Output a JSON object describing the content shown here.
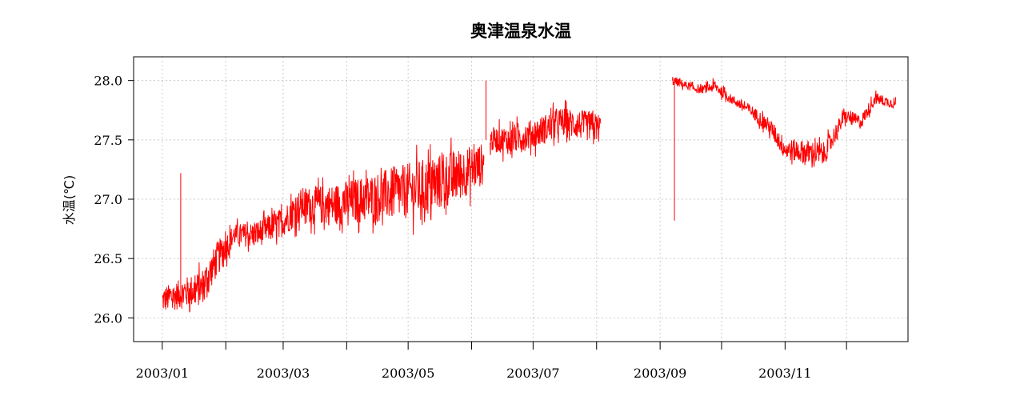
{
  "chart_data": {
    "type": "line",
    "title": "奥津温泉水温",
    "xlabel": "",
    "ylabel": "水温(℃)",
    "color": "#ff0000",
    "grid": true,
    "legend": "none",
    "x_range": [
      "2002-12-18",
      "2003-12-31"
    ],
    "ylim": [
      25.8,
      28.2
    ],
    "y_ticks": [
      26.0,
      26.5,
      27.0,
      27.5,
      28.0
    ],
    "y_tick_labels": [
      "26.0",
      "26.5",
      "27.0",
      "27.5",
      "28.0"
    ],
    "x_ticks": [
      "2003-01-01",
      "2003-02-01",
      "2003-03-01",
      "2003-04-01",
      "2003-05-01",
      "2003-06-01",
      "2003-07-01",
      "2003-08-01",
      "2003-09-01",
      "2003-10-01",
      "2003-11-01",
      "2003-12-01"
    ],
    "x_tick_labels": [
      "2003/01",
      "",
      "2003/03",
      "",
      "2003/05",
      "",
      "2003/07",
      "",
      "2003/09",
      "",
      "2003/11",
      ""
    ],
    "series": [
      {
        "values": [
          [
            "2003-01-01",
            26.15,
            0.22
          ],
          [
            "2003-01-10",
            26.2,
            0.25
          ],
          [
            "2003-01-20",
            26.25,
            0.3
          ],
          [
            "2003-01-28",
            26.5,
            0.3
          ],
          [
            "2003-02-05",
            26.7,
            0.18
          ],
          [
            "2003-02-15",
            26.7,
            0.22
          ],
          [
            "2003-02-28",
            26.8,
            0.25
          ],
          [
            "2003-03-10",
            26.95,
            0.3
          ],
          [
            "2003-03-25",
            26.95,
            0.35
          ],
          [
            "2003-04-10",
            27.0,
            0.4
          ],
          [
            "2003-04-25",
            27.05,
            0.45
          ],
          [
            "2003-05-10",
            27.1,
            0.5
          ],
          [
            "2003-05-25",
            27.2,
            0.45
          ],
          [
            "2003-06-07",
            27.3,
            0.35
          ]
        ]
      },
      {
        "values": [
          [
            "2003-06-10",
            27.5,
            0.2
          ],
          [
            "2003-06-20",
            27.5,
            0.25
          ],
          [
            "2003-07-01",
            27.55,
            0.25
          ],
          [
            "2003-07-15",
            27.65,
            0.25
          ],
          [
            "2003-08-03",
            27.6,
            0.25
          ]
        ]
      },
      {
        "values": [
          [
            "2003-09-07",
            28.0,
            0.08
          ],
          [
            "2003-09-20",
            27.92,
            0.06
          ],
          [
            "2003-09-28",
            27.95,
            0.1
          ],
          [
            "2003-10-05",
            27.85,
            0.08
          ],
          [
            "2003-10-15",
            27.75,
            0.1
          ],
          [
            "2003-10-25",
            27.6,
            0.15
          ],
          [
            "2003-11-01",
            27.42,
            0.18
          ],
          [
            "2003-11-10",
            27.4,
            0.2
          ],
          [
            "2003-11-20",
            27.38,
            0.2
          ],
          [
            "2003-11-30",
            27.7,
            0.12
          ],
          [
            "2003-12-08",
            27.65,
            0.12
          ],
          [
            "2003-12-15",
            27.85,
            0.1
          ],
          [
            "2003-12-25",
            27.8,
            0.08
          ]
        ]
      }
    ],
    "spikes": [
      [
        "2003-01-10",
        27.22
      ],
      [
        "2003-06-08",
        28.0
      ],
      [
        "2003-09-08",
        26.82
      ]
    ]
  }
}
